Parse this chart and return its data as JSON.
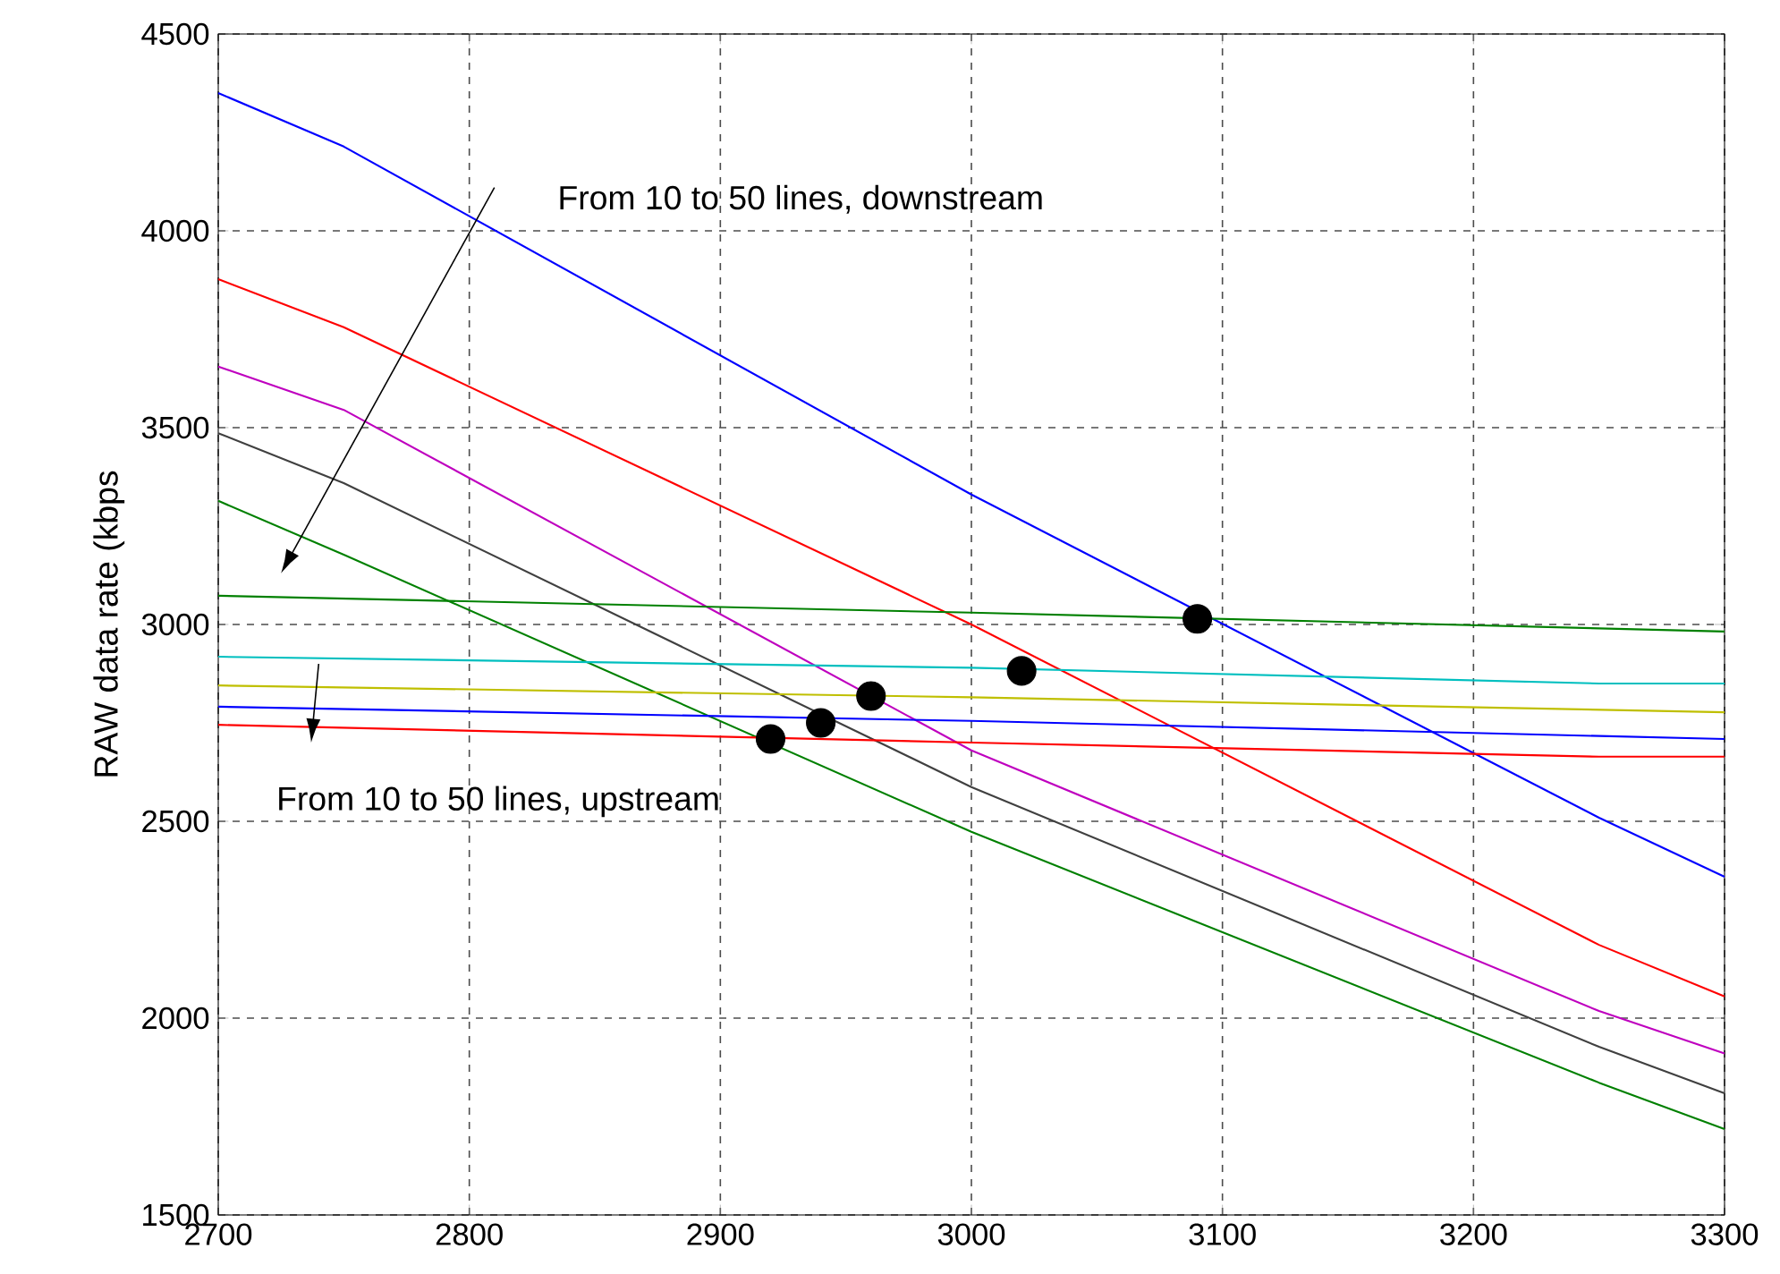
{
  "chart_data": {
    "type": "line",
    "ylabel": "RAW data rate (kbps",
    "xlim": [
      2700,
      3300
    ],
    "ylim": [
      1500,
      4500
    ],
    "xticks": [
      2700,
      2800,
      2900,
      3000,
      3100,
      3200,
      3300
    ],
    "yticks": [
      1500,
      2000,
      2500,
      3000,
      3500,
      4000,
      4500
    ],
    "grid": true,
    "annotations": [
      "From 10 to 50 lines, downstream",
      "From 10 to 50 lines, upstream"
    ],
    "series": [
      {
        "color": "#0000ff",
        "x": [
          2700,
          2750,
          3000,
          3250,
          3300
        ],
        "values": [
          4350,
          4214,
          3330,
          2509,
          2359
        ]
      },
      {
        "color": "#ff0000",
        "x": [
          2700,
          2750,
          3000,
          3250,
          3300
        ],
        "values": [
          3877,
          3755,
          3000,
          2186,
          2055
        ]
      },
      {
        "color": "#bf00bf",
        "x": [
          2700,
          2750,
          3000,
          3250,
          3300
        ],
        "values": [
          3655,
          3545,
          2680,
          2018,
          1910
        ]
      },
      {
        "color": "#404040",
        "x": [
          2700,
          2750,
          3000,
          3250,
          3300
        ],
        "values": [
          3486,
          3359,
          2587,
          1927,
          1809
        ]
      },
      {
        "color": "#008000",
        "x": [
          2700,
          2750,
          3000,
          3250,
          3300
        ],
        "values": [
          3314,
          3177,
          2473,
          1836,
          1718
        ]
      },
      {
        "color": "#008000",
        "x": [
          2700,
          3000,
          3300
        ],
        "values": [
          3073,
          3030,
          2982
        ]
      },
      {
        "color": "#00bfbf",
        "x": [
          2700,
          3000,
          3250,
          3300
        ],
        "values": [
          2918,
          2890,
          2850,
          2850
        ]
      },
      {
        "color": "#bfbf00",
        "x": [
          2700,
          3000,
          3300
        ],
        "values": [
          2845,
          2815,
          2777
        ]
      },
      {
        "color": "#0000ff",
        "x": [
          2700,
          3000,
          3300
        ],
        "values": [
          2791,
          2755,
          2709
        ]
      },
      {
        "color": "#ff0000",
        "x": [
          2700,
          3000,
          3250,
          3300
        ],
        "values": [
          2745,
          2700,
          2664,
          2664
        ]
      },
      {
        "type": "scatter",
        "marker": "circle",
        "color": "#000000",
        "x": [
          2920,
          2940,
          2960,
          3020,
          3090
        ],
        "values": [
          2709,
          2750,
          2818,
          2882,
          3014
        ]
      }
    ]
  }
}
